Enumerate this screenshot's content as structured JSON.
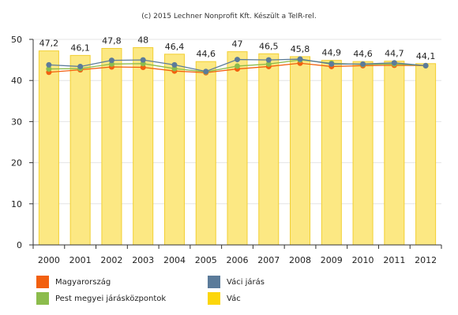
{
  "chart_data": {
    "type": "bar",
    "title": "(c) 2015 Lechner Nonprofit Kft. Készült a TeIR-rel.",
    "categories": [
      "2000",
      "2001",
      "2002",
      "2003",
      "2004",
      "2005",
      "2006",
      "2007",
      "2008",
      "2009",
      "2010",
      "2011",
      "2012"
    ],
    "ylim": [
      0,
      50
    ],
    "yticks": [
      0,
      10,
      20,
      30,
      40,
      50
    ],
    "grid": true,
    "legend_position": "bottom",
    "series": [
      {
        "name": "Vác",
        "kind": "bar",
        "color": "#fce883",
        "edge_color": "#f2cf32",
        "values": [
          47.2,
          46.1,
          47.8,
          48,
          46.4,
          44.6,
          47,
          46.5,
          45.8,
          44.9,
          44.6,
          44.7,
          44.1
        ],
        "labels": [
          "47,2",
          "46,1",
          "47,8",
          "48",
          "46,4",
          "44,6",
          "47",
          "46,5",
          "45,8",
          "44,9",
          "44,6",
          "44,7",
          "44,1"
        ]
      },
      {
        "name": "Magyarország",
        "kind": "line",
        "color": "#f2600f",
        "values": [
          42.0,
          42.6,
          43.3,
          43.2,
          42.3,
          41.9,
          42.8,
          43.4,
          44.2,
          43.4,
          43.6,
          43.7,
          43.6
        ]
      },
      {
        "name": "Pest megyei járásközpontok",
        "kind": "line",
        "color": "#8cbc4c",
        "values": [
          42.8,
          42.9,
          44.0,
          44.1,
          42.9,
          42.1,
          43.5,
          44.0,
          45.0,
          44.2,
          43.9,
          44.0,
          43.6
        ]
      },
      {
        "name": "Váci járás",
        "kind": "line",
        "color": "#5b7b9a",
        "values": [
          43.8,
          43.4,
          44.9,
          45.0,
          43.8,
          42.2,
          45.1,
          45.0,
          45.2,
          44.0,
          44.0,
          44.3,
          43.6
        ]
      }
    ],
    "legend": [
      {
        "name": "Magyarország",
        "color": "#f2600f"
      },
      {
        "name": "Váci járás",
        "color": "#5b7b9a"
      },
      {
        "name": "Pest megyei járásközpontok",
        "color": "#8cbc4c"
      },
      {
        "name": "Vác",
        "color": "#fcd60a"
      }
    ]
  }
}
